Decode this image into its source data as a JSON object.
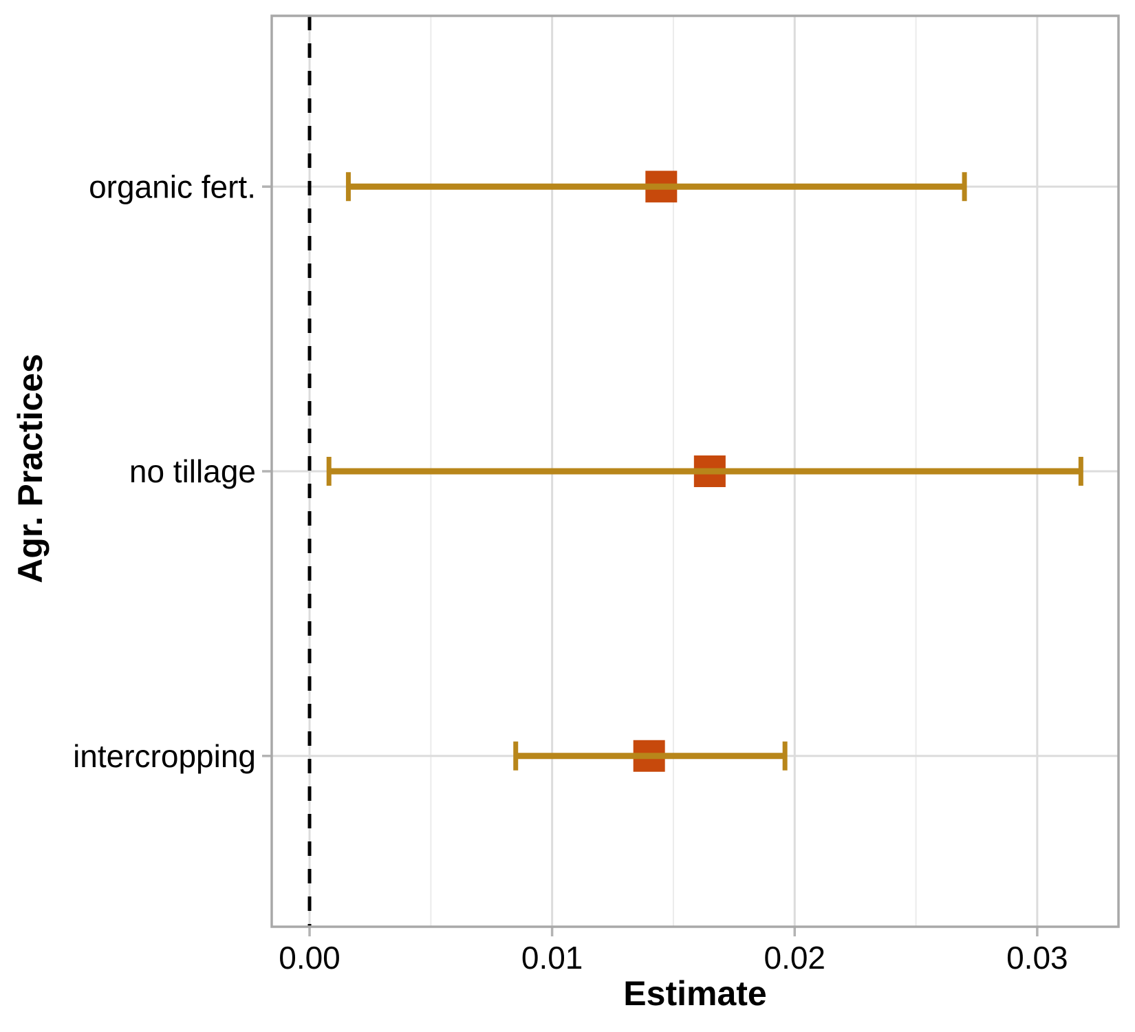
{
  "figure": {
    "kind": "dot-and-whisker forest plot"
  },
  "chart_data": {
    "type": "scatter",
    "subtype": "dot-whisker-errorbar",
    "orientation": "horizontal",
    "title": "",
    "xlabel": "Estimate",
    "ylabel": "Agr. Practices",
    "categories": [
      "organic fert.",
      "no tillage",
      "intercropping"
    ],
    "series": [
      {
        "name": "Estimate",
        "values": [
          0.0145,
          0.0165,
          0.014
        ],
        "ci_low": [
          0.0016,
          0.0008,
          0.0085
        ],
        "ci_high": [
          0.027,
          0.0318,
          0.0196
        ]
      }
    ],
    "x_tick_labels": [
      "0.00",
      "0.01",
      "0.02",
      "0.03"
    ],
    "x_tick_values": [
      0.0,
      0.01,
      0.02,
      0.03
    ],
    "x_minor_tick_values": [
      0.005,
      0.015,
      0.025
    ],
    "xlim": [
      -0.00156,
      0.03335
    ],
    "reference_line_x": 0.0,
    "grid": true,
    "legend": false,
    "colors": {
      "marker": "#C7490C",
      "errorbar": "#B8861A",
      "grid_major": "#DCDCDC",
      "grid_minor": "#EBEBEB",
      "panel_border": "#A8A8A8",
      "axis_tick": "#B3B3B3",
      "reference_line": "#000000",
      "text": "#000000"
    }
  }
}
